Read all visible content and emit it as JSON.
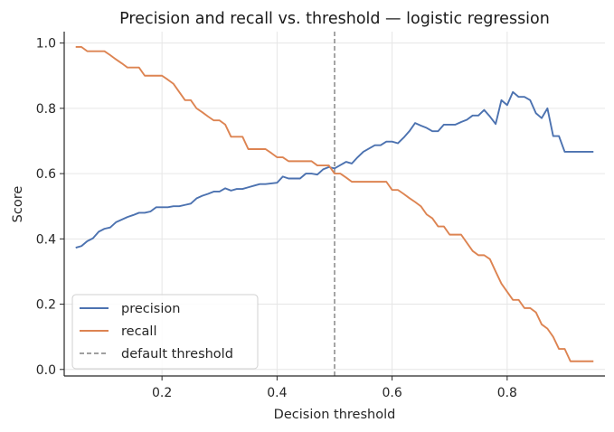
{
  "chart_data": {
    "type": "line",
    "title": "Precision and recall vs. threshold — logistic regression",
    "xlabel": "Decision threshold",
    "ylabel": "Score",
    "xlim": [
      0.03,
      0.97
    ],
    "ylim": [
      -0.02,
      1.035
    ],
    "xticks": [
      0.2,
      0.4,
      0.6,
      0.8
    ],
    "xtick_labels": [
      "0.2",
      "0.4",
      "0.6",
      "0.8"
    ],
    "yticks": [
      0.0,
      0.2,
      0.4,
      0.6,
      0.8,
      1.0
    ],
    "ytick_labels": [
      "0.0",
      "0.2",
      "0.4",
      "0.6",
      "0.8",
      "1.0"
    ],
    "grid": true,
    "legend_position": "lower-left",
    "series": [
      {
        "name": "precision",
        "color": "#4c72b0",
        "x": [
          0.05,
          0.06,
          0.07,
          0.08,
          0.09,
          0.1,
          0.11,
          0.12,
          0.13,
          0.14,
          0.15,
          0.16,
          0.17,
          0.18,
          0.19,
          0.2,
          0.21,
          0.22,
          0.23,
          0.24,
          0.25,
          0.26,
          0.27,
          0.28,
          0.29,
          0.3,
          0.31,
          0.32,
          0.33,
          0.34,
          0.35,
          0.36,
          0.37,
          0.38,
          0.39,
          0.4,
          0.41,
          0.42,
          0.43,
          0.44,
          0.45,
          0.46,
          0.47,
          0.48,
          0.49,
          0.5,
          0.51,
          0.52,
          0.53,
          0.54,
          0.55,
          0.56,
          0.57,
          0.58,
          0.59,
          0.6,
          0.61,
          0.62,
          0.63,
          0.64,
          0.65,
          0.66,
          0.67,
          0.68,
          0.69,
          0.7,
          0.71,
          0.72,
          0.73,
          0.74,
          0.75,
          0.76,
          0.77,
          0.78,
          0.79,
          0.8,
          0.81,
          0.82,
          0.83,
          0.84,
          0.85,
          0.86,
          0.87,
          0.88,
          0.89,
          0.9,
          0.91,
          0.92,
          0.93,
          0.94,
          0.95
        ],
        "values": [
          0.373,
          0.378,
          0.393,
          0.402,
          0.422,
          0.431,
          0.435,
          0.451,
          0.459,
          0.467,
          0.473,
          0.48,
          0.48,
          0.484,
          0.497,
          0.497,
          0.497,
          0.5,
          0.5,
          0.504,
          0.508,
          0.524,
          0.532,
          0.538,
          0.545,
          0.545,
          0.555,
          0.548,
          0.553,
          0.553,
          0.558,
          0.563,
          0.568,
          0.568,
          0.57,
          0.572,
          0.591,
          0.585,
          0.585,
          0.585,
          0.6,
          0.6,
          0.597,
          0.613,
          0.62,
          0.616,
          0.626,
          0.636,
          0.631,
          0.65,
          0.667,
          0.677,
          0.687,
          0.687,
          0.698,
          0.698,
          0.693,
          0.71,
          0.73,
          0.755,
          0.747,
          0.74,
          0.73,
          0.73,
          0.75,
          0.75,
          0.75,
          0.758,
          0.765,
          0.778,
          0.778,
          0.795,
          0.775,
          0.752,
          0.825,
          0.81,
          0.85,
          0.835,
          0.835,
          0.825,
          0.785,
          0.77,
          0.8,
          0.715,
          0.715,
          0.667,
          0.667,
          0.667,
          0.667,
          0.667,
          0.667
        ]
      },
      {
        "name": "recall",
        "color": "#dd8452",
        "x": [
          0.05,
          0.06,
          0.07,
          0.08,
          0.09,
          0.1,
          0.11,
          0.12,
          0.13,
          0.14,
          0.15,
          0.16,
          0.17,
          0.18,
          0.19,
          0.2,
          0.21,
          0.22,
          0.23,
          0.24,
          0.25,
          0.26,
          0.27,
          0.28,
          0.29,
          0.3,
          0.31,
          0.32,
          0.33,
          0.34,
          0.35,
          0.36,
          0.37,
          0.38,
          0.39,
          0.4,
          0.41,
          0.42,
          0.43,
          0.44,
          0.45,
          0.46,
          0.47,
          0.48,
          0.49,
          0.5,
          0.51,
          0.52,
          0.53,
          0.54,
          0.55,
          0.56,
          0.57,
          0.58,
          0.59,
          0.6,
          0.61,
          0.62,
          0.63,
          0.64,
          0.65,
          0.66,
          0.67,
          0.68,
          0.69,
          0.7,
          0.71,
          0.72,
          0.73,
          0.74,
          0.75,
          0.76,
          0.77,
          0.78,
          0.79,
          0.8,
          0.81,
          0.82,
          0.83,
          0.84,
          0.85,
          0.86,
          0.87,
          0.88,
          0.89,
          0.9,
          0.91,
          0.92,
          0.93,
          0.94,
          0.95
        ],
        "values": [
          0.988,
          0.988,
          0.975,
          0.975,
          0.975,
          0.975,
          0.963,
          0.95,
          0.938,
          0.925,
          0.925,
          0.925,
          0.9,
          0.9,
          0.9,
          0.9,
          0.888,
          0.875,
          0.85,
          0.825,
          0.825,
          0.8,
          0.788,
          0.775,
          0.763,
          0.763,
          0.75,
          0.713,
          0.713,
          0.713,
          0.675,
          0.675,
          0.675,
          0.675,
          0.663,
          0.65,
          0.65,
          0.638,
          0.638,
          0.638,
          0.638,
          0.638,
          0.625,
          0.625,
          0.625,
          0.6,
          0.6,
          0.588,
          0.575,
          0.575,
          0.575,
          0.575,
          0.575,
          0.575,
          0.575,
          0.55,
          0.55,
          0.538,
          0.525,
          0.513,
          0.5,
          0.475,
          0.463,
          0.438,
          0.438,
          0.413,
          0.413,
          0.413,
          0.388,
          0.363,
          0.35,
          0.35,
          0.338,
          0.3,
          0.263,
          0.238,
          0.213,
          0.213,
          0.188,
          0.188,
          0.175,
          0.138,
          0.125,
          0.1,
          0.063,
          0.063,
          0.025,
          0.025,
          0.025,
          0.025,
          0.025
        ]
      }
    ],
    "reference_line": {
      "name": "default threshold",
      "x": 0.5,
      "color": "#808080",
      "style": "dashed"
    }
  }
}
